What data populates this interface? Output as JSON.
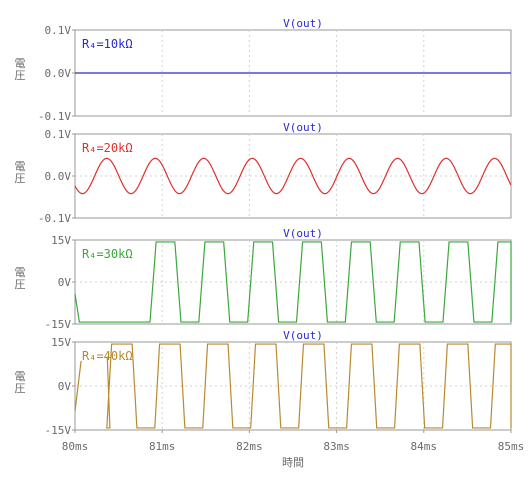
{
  "chart_data": [
    {
      "type": "line",
      "title": "V(out)",
      "ylabel": "電圧",
      "series_label": "R₄=10kΩ",
      "color": "#2a2ad6",
      "ylim": [
        -0.1,
        0.1
      ],
      "yticks": [
        "0.1V",
        "0.0V",
        "-0.1V"
      ],
      "xlim": [
        80,
        85
      ],
      "waveform": {
        "kind": "flat",
        "value": 0.0
      }
    },
    {
      "type": "line",
      "title": "V(out)",
      "ylabel": "電圧",
      "series_label": "R₄=20kΩ",
      "color": "#e0302a",
      "ylim": [
        -0.1,
        0.1
      ],
      "yticks": [
        "0.1V",
        "0.0V",
        "-0.1V"
      ],
      "xlim": [
        80,
        85
      ],
      "waveform": {
        "kind": "sine",
        "amplitude": 0.042,
        "period_ms": 0.556,
        "peak_at_ms": 80.92
      }
    },
    {
      "type": "line",
      "title": "V(out)",
      "ylabel": "電圧",
      "series_label": "R₄=30kΩ",
      "color": "#3aa83a",
      "ylim": [
        -15,
        15
      ],
      "yticks": [
        "15V",
        "0V",
        "-15V"
      ],
      "xlim": [
        80,
        85
      ],
      "waveform": {
        "kind": "clipped",
        "high": 14.3,
        "low": -14.3,
        "period_ms": 0.562,
        "high_start_ms": [
          80.93,
          81.49,
          82.05,
          82.61,
          83.17,
          83.73,
          84.29,
          84.85
        ],
        "high_ms": 0.215,
        "low_ms": 0.205,
        "ramp_ms": 0.07,
        "start_ms": 80.05
      }
    },
    {
      "type": "line",
      "title": "V(out)",
      "ylabel": "電圧",
      "series_label": "R₄=40kΩ",
      "color": "#b88a2e",
      "ylim": [
        -15,
        15
      ],
      "yticks": [
        "15V",
        "0V",
        "-15V"
      ],
      "xlim": [
        80,
        85
      ],
      "waveform": {
        "kind": "clipped",
        "high": 14.3,
        "low": -14.3,
        "period_ms": 0.555,
        "high_start_ms": [
          80.42,
          80.97,
          81.52,
          82.07,
          82.62,
          83.17,
          83.72,
          84.27,
          84.82
        ],
        "high_ms": 0.235,
        "low_ms": 0.215,
        "ramp_ms": 0.055,
        "start_ms": 80.0,
        "segment_from_ms": 80.37
      }
    }
  ],
  "x_axis": {
    "label": "時間",
    "ticks": [
      "80ms",
      "81ms",
      "82ms",
      "83ms",
      "84ms",
      "85ms"
    ],
    "values": [
      80,
      81,
      82,
      83,
      84,
      85
    ]
  }
}
